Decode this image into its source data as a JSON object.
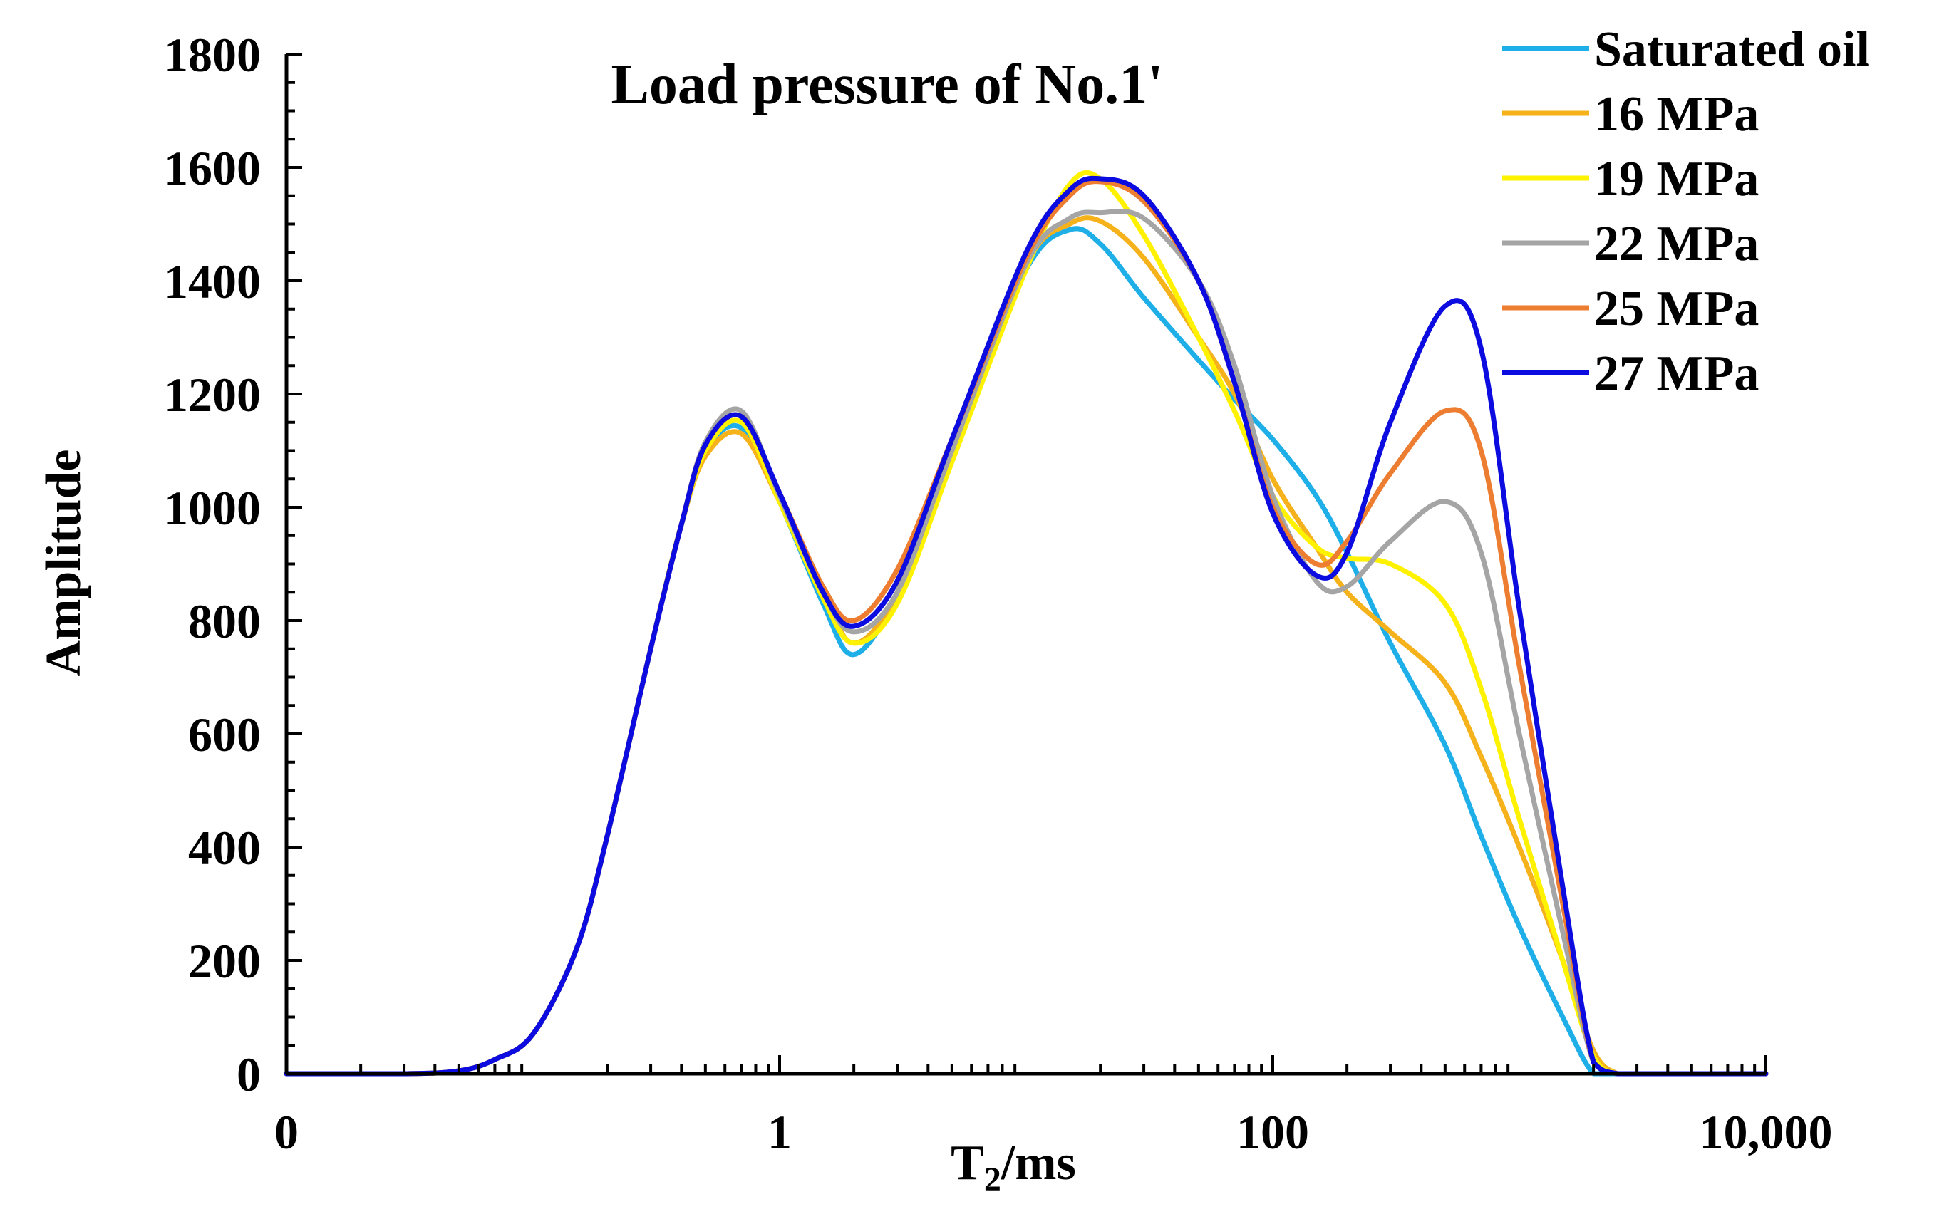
{
  "chart_data": {
    "type": "line",
    "title": "Load pressure of No.1'",
    "xlabel": "T",
    "xlabel_subscript": "2",
    "xlabel_suffix": "/ms",
    "ylabel": "Amplitude",
    "x_scale": "log",
    "xlim": [
      0.01,
      10000
    ],
    "ylim": [
      0,
      1800
    ],
    "x_ticks": [
      {
        "value": 0.01,
        "label": "0"
      },
      {
        "value": 1,
        "label": "1"
      },
      {
        "value": 100,
        "label": "100"
      },
      {
        "value": 10000,
        "label": "10,000"
      }
    ],
    "y_ticks": [
      0,
      200,
      400,
      600,
      800,
      1000,
      1200,
      1400,
      1600,
      1800
    ],
    "grid": false,
    "legend": "top-right",
    "series": [
      {
        "name": "Saturated oil",
        "color": "#1EAEE8",
        "x": [
          0.01,
          0.03,
          0.05,
          0.07,
          0.1,
          0.15,
          0.2,
          0.3,
          0.4,
          0.5,
          0.7,
          1,
          1.5,
          2,
          3,
          5,
          10,
          15,
          20,
          30,
          50,
          70,
          100,
          150,
          200,
          300,
          500,
          700,
          1000,
          1500,
          2000,
          2500,
          3000,
          5000,
          10000
        ],
        "values": [
          0,
          0,
          5,
          25,
          70,
          220,
          420,
          750,
          970,
          1100,
          1140,
          1010,
          830,
          740,
          850,
          1120,
          1420,
          1490,
          1465,
          1370,
          1260,
          1190,
          1120,
          1020,
          920,
          760,
          580,
          420,
          260,
          100,
          0,
          0,
          0,
          0,
          0
        ]
      },
      {
        "name": "16 MPa",
        "color": "#F5B21B",
        "x": [
          0.01,
          0.03,
          0.05,
          0.07,
          0.1,
          0.15,
          0.2,
          0.3,
          0.4,
          0.5,
          0.7,
          1,
          1.5,
          2,
          3,
          5,
          10,
          15,
          20,
          30,
          50,
          70,
          100,
          150,
          200,
          300,
          500,
          700,
          1000,
          1500,
          2000,
          2500,
          3000,
          5000,
          10000
        ],
        "values": [
          0,
          0,
          5,
          25,
          70,
          220,
          420,
          750,
          970,
          1090,
          1130,
          1010,
          850,
          760,
          850,
          1110,
          1430,
          1500,
          1505,
          1440,
          1300,
          1200,
          1050,
          930,
          850,
          780,
          690,
          560,
          400,
          200,
          40,
          0,
          0,
          0,
          0
        ]
      },
      {
        "name": "19 MPa",
        "color": "#FFF200",
        "x": [
          0.01,
          0.03,
          0.05,
          0.07,
          0.1,
          0.15,
          0.2,
          0.3,
          0.4,
          0.5,
          0.7,
          1,
          1.5,
          2,
          3,
          5,
          10,
          15,
          20,
          30,
          50,
          70,
          100,
          150,
          200,
          300,
          500,
          700,
          1000,
          1500,
          2000,
          2500,
          3000,
          5000,
          10000
        ],
        "values": [
          0,
          0,
          5,
          25,
          70,
          220,
          420,
          750,
          970,
          1100,
          1150,
          1010,
          840,
          760,
          830,
          1080,
          1420,
          1570,
          1580,
          1480,
          1300,
          1170,
          1020,
          930,
          910,
          900,
          830,
          680,
          450,
          200,
          30,
          0,
          0,
          0,
          0
        ]
      },
      {
        "name": "22 MPa",
        "color": "#A5A5A5",
        "x": [
          0.01,
          0.03,
          0.05,
          0.07,
          0.1,
          0.15,
          0.2,
          0.3,
          0.4,
          0.5,
          0.7,
          1,
          1.5,
          2,
          3,
          5,
          10,
          15,
          20,
          30,
          50,
          70,
          100,
          150,
          200,
          300,
          500,
          700,
          1000,
          1500,
          2000,
          2500,
          3000,
          5000,
          10000
        ],
        "values": [
          0,
          0,
          5,
          25,
          70,
          220,
          420,
          750,
          970,
          1115,
          1170,
          1020,
          850,
          780,
          850,
          1100,
          1430,
          1510,
          1520,
          1510,
          1400,
          1250,
          1020,
          870,
          860,
          940,
          1010,
          920,
          600,
          250,
          20,
          0,
          0,
          0,
          0
        ]
      },
      {
        "name": "25 MPa",
        "color": "#ED7D31",
        "x": [
          0.01,
          0.03,
          0.05,
          0.07,
          0.1,
          0.15,
          0.2,
          0.3,
          0.4,
          0.5,
          0.7,
          1,
          1.5,
          2,
          3,
          5,
          10,
          15,
          20,
          30,
          50,
          70,
          100,
          150,
          200,
          300,
          500,
          700,
          1000,
          1500,
          2000,
          2500,
          3000,
          5000,
          10000
        ],
        "values": [
          0,
          0,
          5,
          25,
          70,
          220,
          420,
          750,
          970,
          1110,
          1160,
          1025,
          860,
          800,
          890,
          1120,
          1440,
          1550,
          1575,
          1540,
          1400,
          1220,
          1000,
          900,
          940,
          1060,
          1170,
          1100,
          720,
          300,
          20,
          0,
          0,
          0,
          0
        ]
      },
      {
        "name": "27 MPa",
        "color": "#0C0CE0",
        "x": [
          0.01,
          0.03,
          0.05,
          0.07,
          0.1,
          0.15,
          0.2,
          0.3,
          0.4,
          0.5,
          0.7,
          1,
          1.5,
          2,
          3,
          5,
          10,
          15,
          20,
          30,
          50,
          70,
          100,
          150,
          200,
          300,
          500,
          700,
          1000,
          1500,
          2000,
          2500,
          3000,
          5000,
          10000
        ],
        "values": [
          0,
          0,
          5,
          25,
          70,
          220,
          420,
          750,
          970,
          1110,
          1160,
          1025,
          850,
          790,
          870,
          1120,
          1450,
          1560,
          1580,
          1550,
          1400,
          1220,
          990,
          880,
          920,
          1150,
          1355,
          1280,
          820,
          330,
          20,
          0,
          0,
          0,
          0
        ]
      }
    ]
  }
}
